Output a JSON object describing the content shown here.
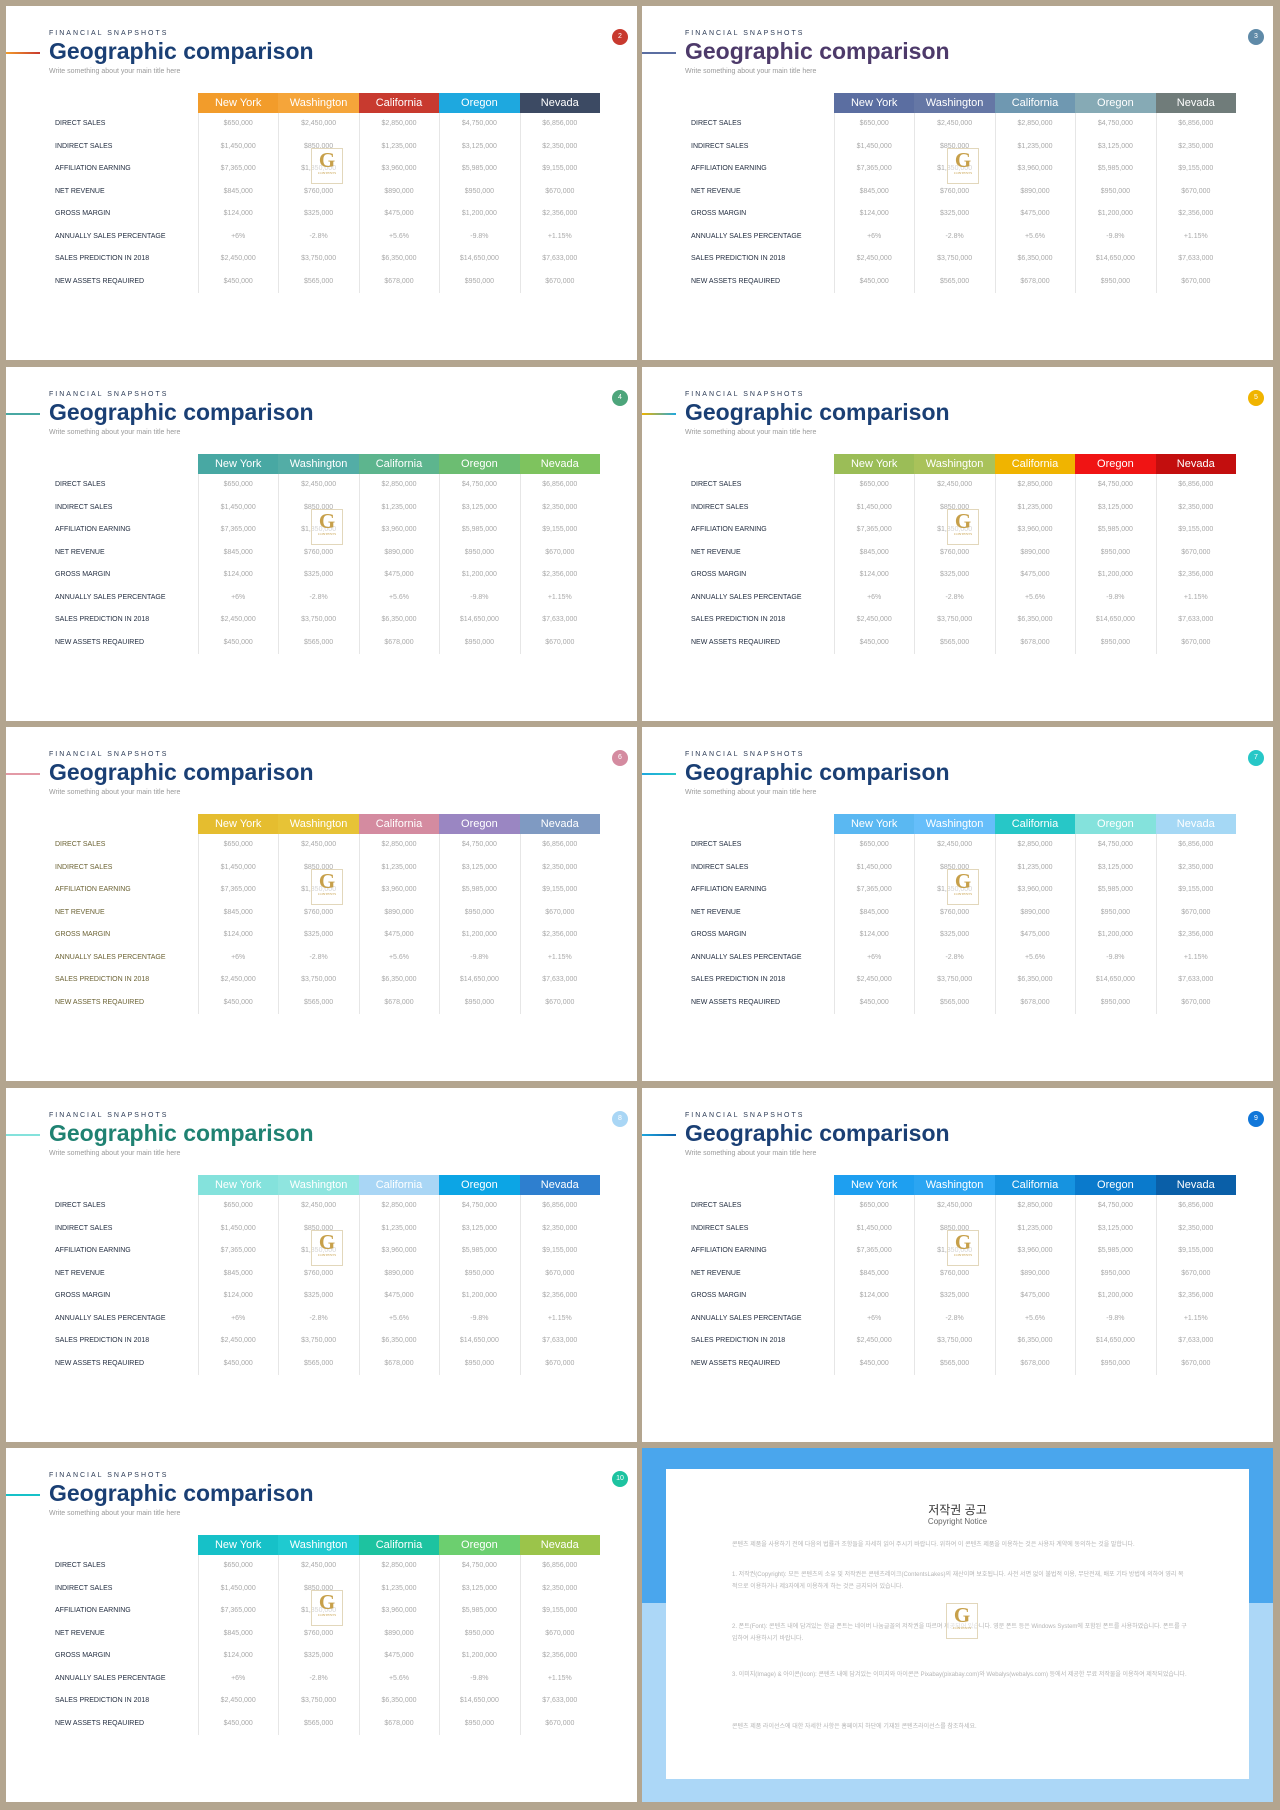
{
  "slides": [
    {
      "kicker": "FINANCIAL SNAPSHOTS",
      "title": "Geographic comparison",
      "subtitle": "Write something about your main title here",
      "page": "2",
      "page_color": "#c83a2f",
      "accent_colors": [
        "#f29c2b",
        "#c83a2f"
      ],
      "title_color": "#1a3f74",
      "row_label_color": "#1f2a3d",
      "header_colors": [
        "#f29c2b",
        "#f5a53a",
        "#c83a2f",
        "#1ea8df",
        "#3c4a63"
      ]
    },
    {
      "kicker": "FINANCIAL SNAPSHOTS",
      "title": "Geographic comparison",
      "subtitle": "Write something about your main title here",
      "page": "3",
      "page_color": "#5f8aa8",
      "accent_colors": [
        "#5b6ea1",
        "#5b6ea1"
      ],
      "title_color": "#4d3a6a",
      "row_label_color": "#1f2a3d",
      "header_colors": [
        "#5b6ea1",
        "#6577a5",
        "#6f98b1",
        "#86aab5",
        "#707c7a"
      ]
    },
    {
      "kicker": "FINANCIAL SNAPSHOTS",
      "title": "Geographic comparison",
      "subtitle": "Write something about your main title here",
      "page": "4",
      "page_color": "#4da57b",
      "accent_colors": [
        "#48a8a3",
        "#48a8a3"
      ],
      "title_color": "#1a3f74",
      "row_label_color": "#1f2a3d",
      "header_colors": [
        "#48a8a3",
        "#53ada6",
        "#5db58e",
        "#6cbd72",
        "#7ec35e"
      ]
    },
    {
      "kicker": "FINANCIAL SNAPSHOTS",
      "title": "Geographic comparison",
      "subtitle": "Write something about your main title here",
      "page": "5",
      "page_color": "#f0b400",
      "accent_colors": [
        "#f0b400",
        "#1ea8df"
      ],
      "title_color": "#1a3f74",
      "row_label_color": "#1f2a3d",
      "header_colors": [
        "#9bbd57",
        "#a9c25a",
        "#f0b400",
        "#f01414",
        "#c30e0e"
      ]
    },
    {
      "kicker": "FINANCIAL SNAPSHOTS",
      "title": "Geographic comparison",
      "subtitle": "Write something about your main title here",
      "page": "6",
      "page_color": "#d48ba0",
      "accent_colors": [
        "#e39aa6",
        "#e39aa6"
      ],
      "title_color": "#1a3f74",
      "row_label_color": "#6b6233",
      "header_colors": [
        "#e5bd2f",
        "#e7c336",
        "#d48ba0",
        "#9a86c2",
        "#7f9ac2"
      ]
    },
    {
      "kicker": "FINANCIAL SNAPSHOTS",
      "title": "Geographic comparison",
      "subtitle": "Write something about your main title here",
      "page": "7",
      "page_color": "#27c7c7",
      "accent_colors": [
        "#1ea8df",
        "#27c7c7"
      ],
      "title_color": "#1a3f74",
      "row_label_color": "#1f2a3d",
      "header_colors": [
        "#5ab8f2",
        "#66befa",
        "#27c7c7",
        "#84e2dc",
        "#a5d8f5"
      ]
    },
    {
      "kicker": "FINANCIAL SNAPSHOTS",
      "title": "Geographic comparison",
      "subtitle": "Write something about your main title here",
      "page": "8",
      "page_color": "#a9d6f5",
      "accent_colors": [
        "#84e2dc",
        "#84e2dc"
      ],
      "title_color": "#1f8272",
      "row_label_color": "#1f2a3d",
      "header_colors": [
        "#84e2dc",
        "#8fe5df",
        "#a9d6f5",
        "#0ca5e5",
        "#2e7fcf"
      ]
    },
    {
      "kicker": "FINANCIAL SNAPSHOTS",
      "title": "Geographic comparison",
      "subtitle": "Write something about your main title here",
      "page": "9",
      "page_color": "#1177d9",
      "accent_colors": [
        "#1ea8df",
        "#0e5fa8"
      ],
      "title_color": "#1a3f74",
      "row_label_color": "#1f2a3d",
      "header_colors": [
        "#1e9ff0",
        "#2ba5f2",
        "#1693e0",
        "#0a7acc",
        "#0a5fa8"
      ]
    },
    {
      "kicker": "FINANCIAL SNAPSHOTS",
      "title": "Geographic comparison",
      "subtitle": "Write something about your main title here",
      "page": "10",
      "page_color": "#1dc3a0",
      "accent_colors": [
        "#16c1c8",
        "#16c1c8"
      ],
      "title_color": "#1a3f74",
      "row_label_color": "#1f2a3d",
      "header_colors": [
        "#16c1c8",
        "#1fcad0",
        "#1dc3a0",
        "#6ccf6f",
        "#9bc44a"
      ]
    }
  ],
  "table": {
    "columns": [
      "New York",
      "Washington",
      "California",
      "Oregon",
      "Nevada"
    ],
    "rows": [
      {
        "label": "DIRECT SALES",
        "values": [
          "$650,000",
          "$2,450,000",
          "$2,850,000",
          "$4,750,000",
          "$6,856,000"
        ]
      },
      {
        "label": "INDIRECT SALES",
        "values": [
          "$1,450,000",
          "$850,000",
          "$1,235,000",
          "$3,125,000",
          "$2,350,000"
        ]
      },
      {
        "label": "AFFILIATION EARNING",
        "values": [
          "$7,365,000",
          "$1,350,000",
          "$3,960,000",
          "$5,985,000",
          "$9,155,000"
        ]
      },
      {
        "label": "NET REVENUE",
        "values": [
          "$845,000",
          "$760,000",
          "$890,000",
          "$950,000",
          "$670,000"
        ]
      },
      {
        "label": "GROSS MARGIN",
        "values": [
          "$124,000",
          "$325,000",
          "$475,000",
          "$1,200,000",
          "$2,356,000"
        ]
      },
      {
        "label": "ANNUALLY SALES PERCENTAGE",
        "values": [
          "+6%",
          "-2.8%",
          "+5.6%",
          "-9.8%",
          "+1.15%"
        ]
      },
      {
        "label": "SALES PREDICTION IN 2018",
        "values": [
          "$2,450,000",
          "$3,750,000",
          "$6,350,000",
          "$14,650,000",
          "$7,633,000"
        ]
      },
      {
        "label": "NEW ASSETS REQAUIRED",
        "values": [
          "$450,000",
          "$565,000",
          "$678,000",
          "$950,000",
          "$670,000"
        ]
      }
    ]
  },
  "watermark": {
    "letter": "G",
    "words": "CONTENTS"
  },
  "copyright": {
    "title": "저작권 공고",
    "subtitle": "Copyright Notice",
    "colors": {
      "top": "#4aa6ed",
      "bottom": "#acd7f7"
    },
    "paragraphs": [
      "콘텐츠 제품을 사용하기 전에 다음의 법률과 조항들을 자세히 읽어 주시기 바랍니다. 위하여 이 콘텐츠 제품을 이용하는 것은 사용자 계약에 동의하는 것을 말합니다.",
      "1. 저작권(Copyright): 모든 콘텐츠의 소유 및 저작권은 콘텐츠레이크(ContentsLakes)의 재산이며 보호됩니다. 사전 서면 없이 불법적 이용, 무단전재, 배포 기타 방법에 의하여 영리 목적으로 이용하거나 제3자에게 이용하게 하는 것은 금지되어 있습니다.",
      "2. 폰트(Font): 콘텐츠 내에 담겨있는 한글 폰트는 네이버 나눔글꼴의 저작권을 따르며 제공되어 있습니다. 영문 폰트 등은 Windows System에 포함된 폰트를 사용하였습니다. 폰트를 구입하여 사용하시기 바랍니다.",
      "3. 이미지(Image) & 아이콘(Icon): 콘텐츠 내에 담겨있는 이미지와 아이콘은 Pixabay(pixabay.com)와 Webalys(webalys.com) 등에서 제공한 무료 저작물을 이용하여 제작되었습니다.",
      "콘텐츠 제품 라이선스에 대한 자세한 사항은 홈페이지 하단에 기재된 콘텐츠라이선스를 참조하세요."
    ]
  }
}
